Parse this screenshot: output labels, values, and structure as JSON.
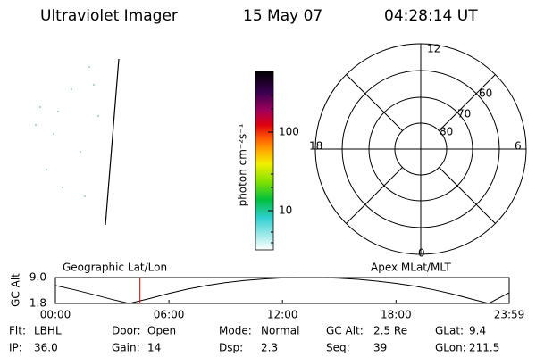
{
  "header": {
    "instrument": "Ultraviolet Imager",
    "date": "15 May 07",
    "time": "04:28:14 UT"
  },
  "colorbar": {
    "label": "photon cm⁻²s⁻¹",
    "ticks": [
      "100",
      "10"
    ]
  },
  "polar": {
    "mlt_labels": [
      "12",
      "18",
      "6",
      "0"
    ],
    "lat_labels": [
      "60",
      "70",
      "80"
    ]
  },
  "chart_data": {
    "type": "line",
    "title_left": "Geographic Lat/Lon",
    "title_right": "Apex MLat/MLT",
    "ylabel": "GC Alt",
    "x": [
      0,
      1,
      2,
      3,
      3.9,
      5,
      6,
      7,
      8,
      9,
      10,
      11,
      12,
      13,
      14,
      15,
      16,
      17,
      18,
      19,
      20,
      21,
      22,
      22.9,
      23.98
    ],
    "values": [
      6.8,
      5.6,
      4.3,
      2.9,
      1.8,
      3.2,
      4.6,
      5.8,
      6.8,
      7.6,
      8.2,
      8.6,
      8.9,
      9.0,
      9.0,
      8.8,
      8.5,
      8.0,
      7.4,
      6.6,
      5.6,
      4.4,
      3.0,
      1.8,
      4.8
    ],
    "color": "#000000",
    "marker_x": 4.47,
    "marker_color": "#cc0000",
    "xlim": [
      0,
      23.98
    ],
    "xticks": [
      {
        "value": 0,
        "label": "00:00"
      },
      {
        "value": 6,
        "label": "06:00"
      },
      {
        "value": 12,
        "label": "12:00"
      },
      {
        "value": 18,
        "label": "18:00"
      },
      {
        "value": 23.98,
        "label": "23:59"
      }
    ],
    "ylim": [
      1.8,
      9
    ],
    "yticks": [
      {
        "value": 9,
        "label": "9.0"
      },
      1.8
    ]
  },
  "footer": {
    "rows": [
      [
        [
          "Flt:",
          "LBHL"
        ],
        [
          "Door:",
          "Open"
        ],
        [
          "Mode:",
          "Normal"
        ],
        [
          "GC Alt:",
          "2.5 Re"
        ],
        [
          "GLat:",
          "9.4"
        ]
      ],
      [
        [
          "IP:",
          "36.0"
        ],
        [
          "Gain:",
          "14"
        ],
        [
          "Dsp:",
          "2.3"
        ],
        [
          "Seq:",
          "39"
        ],
        [
          "GLon:",
          "211.5"
        ]
      ]
    ]
  }
}
